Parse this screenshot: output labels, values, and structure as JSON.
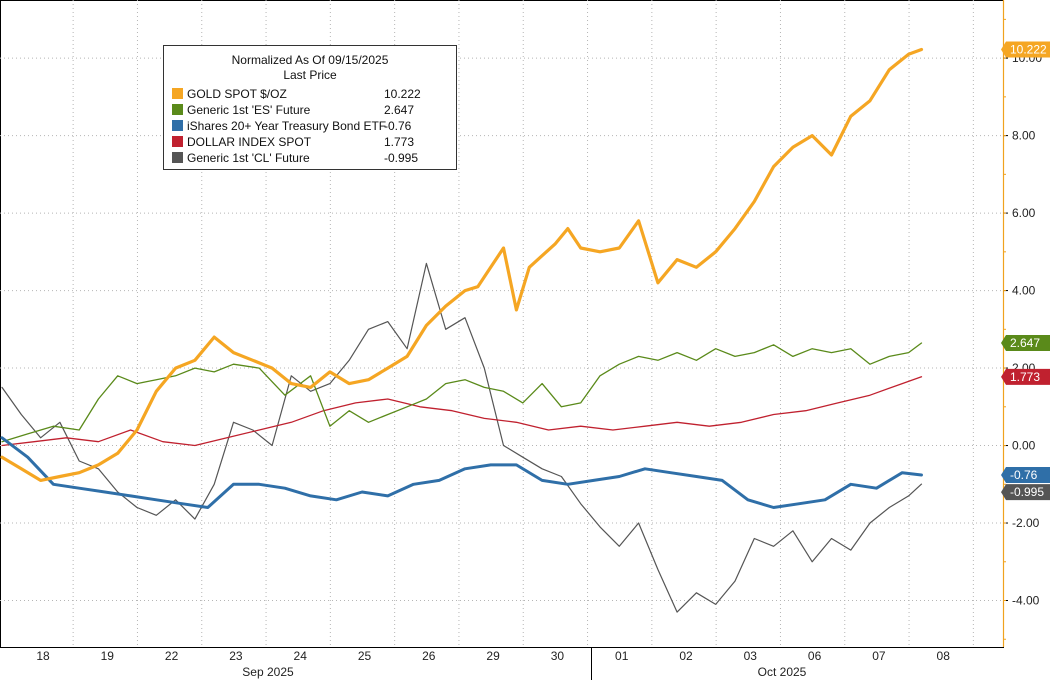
{
  "chart_data": {
    "type": "line",
    "legend": {
      "title_line1": "Normalized As Of 09/15/2025",
      "title_line2": "Last Price",
      "placement": "top-left"
    },
    "y_ticks": [
      "10.00",
      "8.00",
      "6.00",
      "4.00",
      "2.00",
      "0.00",
      "-2.00",
      "-4.00"
    ],
    "y_tick_values": [
      10,
      8,
      6,
      4,
      2,
      0,
      -2,
      -4
    ],
    "ylim": [
      -5.2,
      11.5
    ],
    "x_day_labels": [
      "18",
      "19",
      "22",
      "23",
      "24",
      "25",
      "26",
      "29",
      "30",
      "01",
      "02",
      "03",
      "06",
      "07",
      "08"
    ],
    "months": [
      "Sep 2025",
      "Oct 2025"
    ],
    "grid": true,
    "axis_position": "right",
    "series": [
      {
        "name": "GOLD SPOT $/OZ",
        "last": "10.222",
        "color": "#f5a623",
        "x": [
          0,
          0.3,
          0.6,
          0.9,
          1.2,
          1.5,
          1.8,
          2.1,
          2.4,
          2.7,
          3.0,
          3.3,
          3.6,
          3.9,
          4.2,
          4.5,
          4.8,
          5.1,
          5.4,
          5.7,
          6.0,
          6.3,
          6.6,
          6.9,
          7.2,
          7.4,
          7.6,
          7.8,
          8.0,
          8.2,
          8.4,
          8.6,
          8.8,
          9.0,
          9.3,
          9.6,
          9.9,
          10.2,
          10.5,
          10.8,
          11.1,
          11.4,
          11.7,
          12.0,
          12.3,
          12.6,
          12.9,
          13.2,
          13.5,
          13.8,
          14.1,
          14.3
        ],
        "y": [
          -0.3,
          -0.6,
          -0.9,
          -0.8,
          -0.7,
          -0.5,
          -0.2,
          0.4,
          1.4,
          2.0,
          2.2,
          2.8,
          2.4,
          2.2,
          2.0,
          1.6,
          1.5,
          1.9,
          1.6,
          1.7,
          2.0,
          2.3,
          3.1,
          3.6,
          4.0,
          4.1,
          4.6,
          5.1,
          3.5,
          4.6,
          4.9,
          5.2,
          5.6,
          5.1,
          5.0,
          5.1,
          5.8,
          4.2,
          4.8,
          4.6,
          5.0,
          5.6,
          6.3,
          7.2,
          7.7,
          8.0,
          7.5,
          8.5,
          8.9,
          9.7,
          10.1,
          10.222
        ]
      },
      {
        "name": "Generic 1st 'ES' Future",
        "last": "2.647",
        "color": "#5a8a1a",
        "x": [
          0,
          0.4,
          0.8,
          1.2,
          1.5,
          1.8,
          2.1,
          2.4,
          2.7,
          3.0,
          3.3,
          3.6,
          4.0,
          4.4,
          4.8,
          5.1,
          5.4,
          5.7,
          6.0,
          6.3,
          6.6,
          6.9,
          7.2,
          7.5,
          7.8,
          8.1,
          8.4,
          8.7,
          9.0,
          9.3,
          9.6,
          9.9,
          10.2,
          10.5,
          10.8,
          11.1,
          11.4,
          11.7,
          12.0,
          12.3,
          12.6,
          12.9,
          13.2,
          13.5,
          13.8,
          14.1,
          14.3
        ],
        "y": [
          0.1,
          0.3,
          0.5,
          0.4,
          1.2,
          1.8,
          1.6,
          1.7,
          1.8,
          2.0,
          1.9,
          2.1,
          2.0,
          1.3,
          1.8,
          0.5,
          0.9,
          0.6,
          0.8,
          1.0,
          1.2,
          1.6,
          1.7,
          1.5,
          1.4,
          1.1,
          1.6,
          1.0,
          1.1,
          1.8,
          2.1,
          2.3,
          2.2,
          2.4,
          2.2,
          2.5,
          2.3,
          2.4,
          2.6,
          2.3,
          2.5,
          2.4,
          2.5,
          2.1,
          2.3,
          2.4,
          2.647
        ]
      },
      {
        "name": "iShares 20+ Year Treasury Bond ETF",
        "last": "-0.76",
        "color": "#2f6fa8",
        "x": [
          0,
          0.4,
          0.8,
          1.2,
          1.6,
          2.0,
          2.4,
          2.8,
          3.2,
          3.6,
          4.0,
          4.4,
          4.8,
          5.2,
          5.6,
          6.0,
          6.4,
          6.8,
          7.2,
          7.6,
          8.0,
          8.4,
          8.8,
          9.2,
          9.6,
          10.0,
          10.4,
          10.8,
          11.2,
          11.6,
          12.0,
          12.4,
          12.8,
          13.2,
          13.6,
          14.0,
          14.3
        ],
        "y": [
          0.2,
          -0.3,
          -1.0,
          -1.1,
          -1.2,
          -1.3,
          -1.4,
          -1.5,
          -1.6,
          -1.0,
          -1.0,
          -1.1,
          -1.3,
          -1.4,
          -1.2,
          -1.3,
          -1.0,
          -0.9,
          -0.6,
          -0.5,
          -0.5,
          -0.9,
          -1.0,
          -0.9,
          -0.8,
          -0.6,
          -0.7,
          -0.8,
          -0.9,
          -1.4,
          -1.6,
          -1.5,
          -1.4,
          -1.0,
          -1.1,
          -0.7,
          -0.76
        ]
      },
      {
        "name": "DOLLAR INDEX SPOT",
        "last": "1.773",
        "color": "#c0212f",
        "x": [
          0,
          0.5,
          1.0,
          1.5,
          2.0,
          2.5,
          3.0,
          3.5,
          4.0,
          4.5,
          5.0,
          5.5,
          6.0,
          6.5,
          7.0,
          7.5,
          8.0,
          8.5,
          9.0,
          9.5,
          10.0,
          10.5,
          11.0,
          11.5,
          12.0,
          12.5,
          13.0,
          13.5,
          14.0,
          14.3
        ],
        "y": [
          0.0,
          0.1,
          0.2,
          0.1,
          0.4,
          0.1,
          0.0,
          0.2,
          0.4,
          0.6,
          0.9,
          1.1,
          1.2,
          1.0,
          0.9,
          0.7,
          0.6,
          0.4,
          0.5,
          0.4,
          0.5,
          0.6,
          0.5,
          0.6,
          0.8,
          0.9,
          1.1,
          1.3,
          1.6,
          1.773
        ]
      },
      {
        "name": "Generic 1st 'CL' Future",
        "last": "-0.995",
        "color": "#555555",
        "x": [
          0,
          0.3,
          0.6,
          0.9,
          1.2,
          1.5,
          1.8,
          2.1,
          2.4,
          2.7,
          3.0,
          3.3,
          3.6,
          3.9,
          4.2,
          4.5,
          4.8,
          5.1,
          5.4,
          5.7,
          6.0,
          6.3,
          6.6,
          6.9,
          7.2,
          7.5,
          7.8,
          8.1,
          8.4,
          8.7,
          9.0,
          9.3,
          9.6,
          9.9,
          10.2,
          10.5,
          10.8,
          11.1,
          11.4,
          11.7,
          12.0,
          12.3,
          12.6,
          12.9,
          13.2,
          13.5,
          13.8,
          14.1,
          14.3
        ],
        "y": [
          1.5,
          0.8,
          0.2,
          0.6,
          -0.4,
          -0.6,
          -1.2,
          -1.6,
          -1.8,
          -1.4,
          -1.9,
          -1.0,
          0.6,
          0.4,
          0.0,
          1.8,
          1.4,
          1.6,
          2.2,
          3.0,
          3.2,
          2.5,
          4.7,
          3.0,
          3.3,
          2.0,
          0.0,
          -0.3,
          -0.6,
          -0.8,
          -1.5,
          -2.1,
          -2.6,
          -2.0,
          -3.2,
          -4.3,
          -3.8,
          -4.1,
          -3.5,
          -2.4,
          -2.6,
          -2.2,
          -3.0,
          -2.4,
          -2.7,
          -2.0,
          -1.6,
          -1.3,
          -0.995
        ]
      }
    ]
  }
}
